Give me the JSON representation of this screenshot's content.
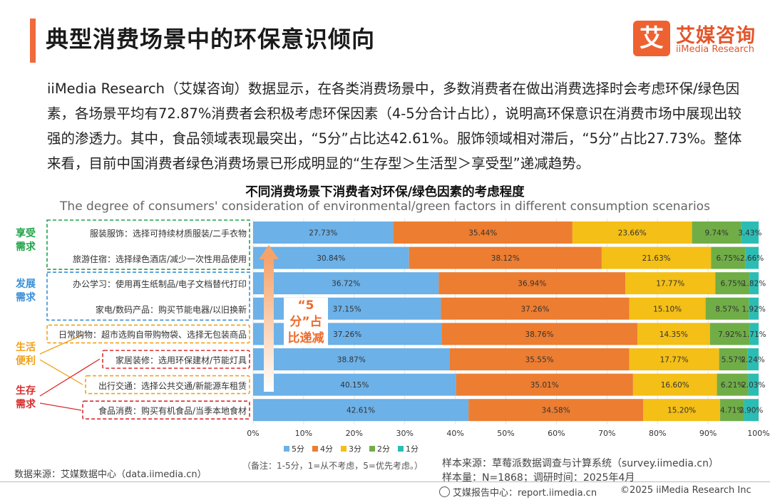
{
  "header": {
    "title": "典型消费场景中的环保意识倾向",
    "logo_mark": "艾",
    "logo_name": "艾媒咨询",
    "logo_en": "iiMedia Research"
  },
  "description": "iiMedia Research（艾媒咨询）数据显示，在各类消费场景中，多数消费者在做出消费选择时会考虑环保/绿色因素，各场景平均有72.87%消费者会积极考虑环保因素（4-5分合计占比），说明高环保意识在消费市场中展现出较强的渗透力。其中，食品领域表现最突出，“5分”占比达42.61%。服饰领域相对滞后，“5分”占比27.73%。整体来看，目前中国消费者绿色消费场景已形成明显的“生存型＞生活型＞享受型”递减趋势。",
  "chart_data": {
    "type": "bar",
    "orientation": "horizontal",
    "stacked": true,
    "title": "不同消费场景下消费者对环保/绿色因素的考虑程度",
    "subtitle": "The degree of consumers' consideration of environmental/green factors in different consumption scenarios",
    "categories": [
      "服装服饰：选择可持续材质服装/二手衣物",
      "旅游住宿：选择绿色酒店/减少一次性用品使用",
      "办公学习：使用再生纸制品/电子文档替代打印",
      "家电/数码产品：购买节能电器/以旧换新",
      "日常购物：超市选购自带购物袋、选择无包装商品",
      "家居装修：选用环保建材/节能灯具",
      "出行交通：选择公共交通/新能源车租赁",
      "食品消费：购买有机食品/当季本地食材"
    ],
    "series": [
      {
        "name": "5分",
        "color": "#6cb1e8",
        "values": [
          27.73,
          30.84,
          36.72,
          37.15,
          37.26,
          38.87,
          40.15,
          42.61
        ]
      },
      {
        "name": "4分",
        "color": "#ec7d31",
        "values": [
          35.44,
          38.12,
          36.94,
          37.26,
          38.76,
          35.55,
          35.01,
          34.58
        ]
      },
      {
        "name": "3分",
        "color": "#f4bf16",
        "values": [
          23.66,
          21.63,
          17.77,
          15.1,
          14.35,
          17.77,
          16.6,
          15.2
        ]
      },
      {
        "name": "2分",
        "color": "#70ad47",
        "values": [
          9.74,
          6.75,
          6.75,
          8.57,
          7.92,
          5.57,
          6.21,
          4.71
        ]
      },
      {
        "name": "1分",
        "color": "#2bbdb4",
        "values": [
          3.43,
          2.66,
          1.82,
          1.92,
          1.71,
          2.24,
          2.03,
          2.9
        ]
      }
    ],
    "xlim": [
      0,
      100
    ],
    "xticks": [
      "0%",
      "10%",
      "20%",
      "30%",
      "40%",
      "50%",
      "60%",
      "70%",
      "80%",
      "90%",
      "100%"
    ],
    "groups": [
      {
        "label": "享受需求",
        "color": "#21a348",
        "members": [
          0,
          1
        ]
      },
      {
        "label": "发展需求",
        "color": "#3a8fd6",
        "members": [
          2,
          3
        ]
      },
      {
        "label": "生活便利",
        "color": "#f0a118",
        "members": [
          4,
          5,
          6
        ]
      },
      {
        "label": "生存需求",
        "color": "#d92d2d",
        "members": [
          5,
          6,
          7
        ]
      }
    ],
    "arrow_annotation": "“5分”占比递减",
    "legend_position": "bottom"
  },
  "notes": {
    "note": "（备注：1-5分，1=从不考虑，5=优先考虑。）",
    "sample_source": "样本来源：草莓派数据调查与计算系统（survey.iimedia.cn）",
    "sample_size": "样本量：N=1868；调研时间：2025年4月",
    "data_source": "数据来源：艾媒数据中心（data.iimedia.cn）"
  },
  "footer": {
    "report_center": "艾媒报告中心：report.iimedia.cn",
    "copyright": "©2025  iiMedia Research  Inc"
  }
}
